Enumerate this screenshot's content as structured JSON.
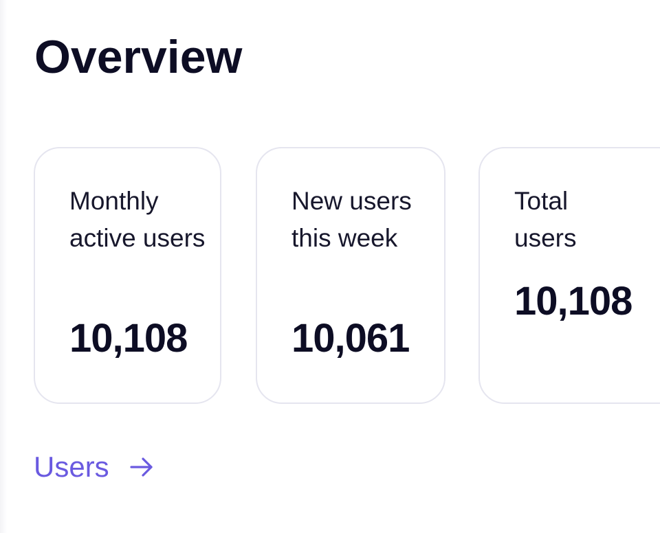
{
  "header": {
    "title": "Overview"
  },
  "stats": [
    {
      "label": "Monthly active users",
      "value": "10,108"
    },
    {
      "label": "New users this week",
      "value": "10,061"
    },
    {
      "label": "Total users",
      "value": "10,108"
    }
  ],
  "links": {
    "users_label": "Users",
    "arrow_icon": "arrow-right-icon"
  },
  "colors": {
    "accent": "#6a5ae0",
    "text": "#0d0d24",
    "card_border": "#e5e5ef"
  }
}
